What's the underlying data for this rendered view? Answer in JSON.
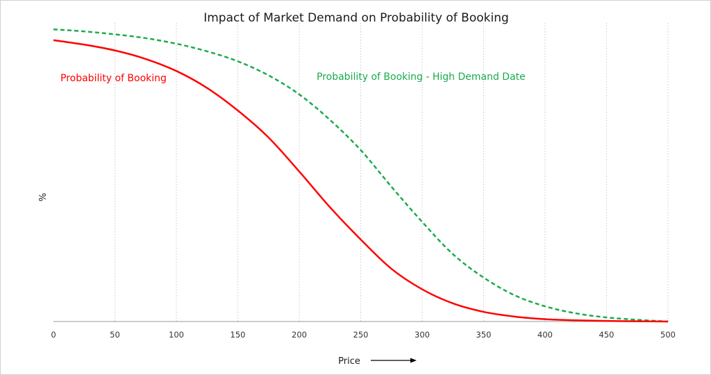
{
  "chart_data": {
    "type": "line",
    "title": "Impact of Market Demand on Probability of Booking",
    "xlabel": "Price",
    "ylabel": "%",
    "xlim": [
      0,
      500
    ],
    "x_ticks": [
      "0",
      "50",
      "100",
      "150",
      "200",
      "250",
      "300",
      "350",
      "400",
      "450",
      "500"
    ],
    "ylim": [
      0,
      1
    ],
    "grid": "vertical dotted",
    "legend": "inline labels",
    "x": [
      0,
      25,
      50,
      75,
      100,
      125,
      150,
      175,
      200,
      225,
      250,
      275,
      300,
      325,
      350,
      375,
      400,
      425,
      450,
      475,
      500
    ],
    "series": [
      {
        "name": "Probability of Booking",
        "color": "#ff0000",
        "style": "solid",
        "values": [
          0.96,
          0.945,
          0.925,
          0.896,
          0.855,
          0.797,
          0.72,
          0.628,
          0.512,
          0.39,
          0.28,
          0.18,
          0.11,
          0.062,
          0.033,
          0.017,
          0.008,
          0.004,
          0.002,
          0.001,
          0.0
        ]
      },
      {
        "name": "Probability of Booking - High Demand Date",
        "color": "#1aab4a",
        "style": "dashed",
        "values": [
          0.997,
          0.99,
          0.98,
          0.967,
          0.948,
          0.922,
          0.888,
          0.84,
          0.775,
          0.688,
          0.585,
          0.46,
          0.34,
          0.23,
          0.15,
          0.09,
          0.052,
          0.028,
          0.014,
          0.006,
          0.0
        ]
      }
    ]
  }
}
